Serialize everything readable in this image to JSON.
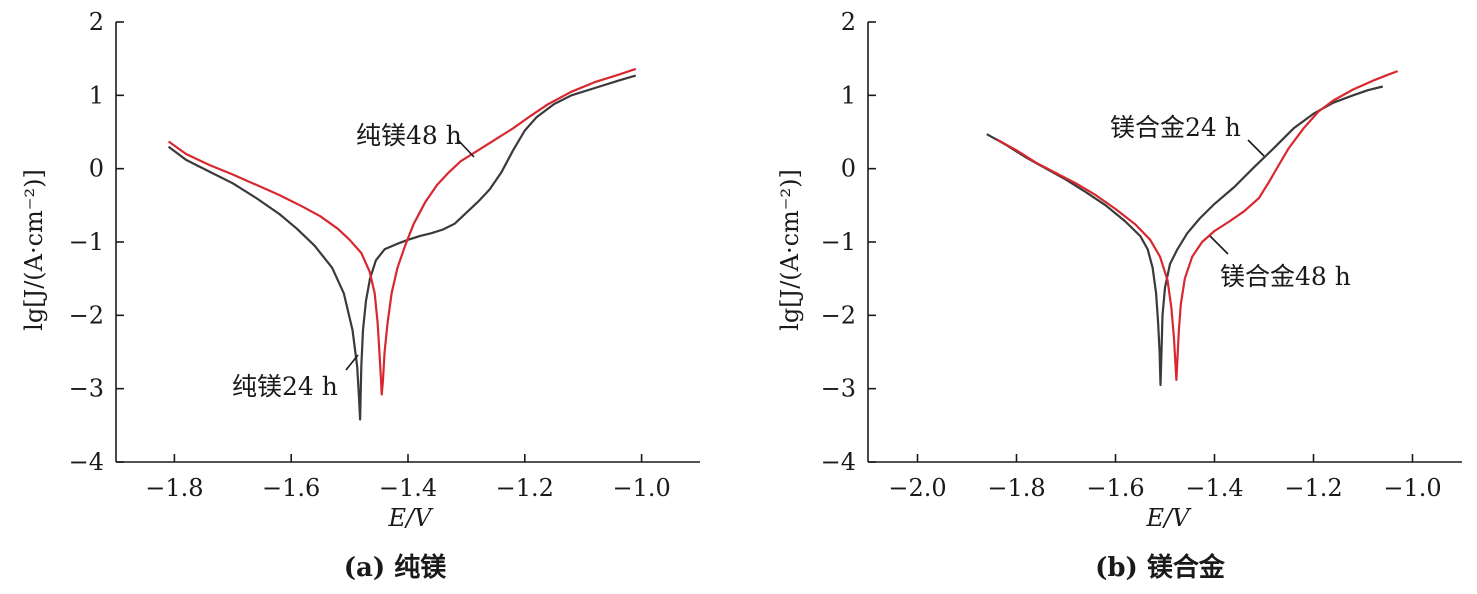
{
  "colors": {
    "series_24h": "#3a3a3a",
    "series_48h": "#d8282f",
    "axis": "#1a1a1a"
  },
  "chart_data": [
    {
      "type": "line",
      "caption": "(a) 纯镁",
      "xlabel": "E/V",
      "ylabel": "lg[J/(A·cm⁻²)]",
      "xlim": [
        -1.9,
        -0.9
      ],
      "ylim": [
        -4,
        2
      ],
      "xticks": [
        -1.8,
        -1.6,
        -1.4,
        -1.2,
        -1.0
      ],
      "xtick_labels": [
        "−1.8",
        "−1.6",
        "−1.4",
        "−1.2",
        "−1.0"
      ],
      "yticks": [
        -4,
        -3,
        -2,
        -1,
        0,
        1,
        2
      ],
      "ytick_labels": [
        "−4",
        "−3",
        "−2",
        "−1",
        "0",
        "1",
        "2"
      ],
      "series": [
        {
          "name": "纯镁24 h",
          "color_key": "series_24h",
          "x": [
            -1.81,
            -1.78,
            -1.74,
            -1.7,
            -1.66,
            -1.62,
            -1.59,
            -1.56,
            -1.53,
            -1.51,
            -1.495,
            -1.487,
            -1.484,
            -1.482,
            -1.48,
            -1.477,
            -1.472,
            -1.465,
            -1.455,
            -1.44,
            -1.42,
            -1.4,
            -1.38,
            -1.36,
            -1.34,
            -1.32,
            -1.3,
            -1.28,
            -1.26,
            -1.24,
            -1.22,
            -1.2,
            -1.18,
            -1.15,
            -1.12,
            -1.08,
            -1.04,
            -1.01
          ],
          "y": [
            0.3,
            0.12,
            -0.04,
            -0.2,
            -0.4,
            -0.62,
            -0.82,
            -1.05,
            -1.35,
            -1.7,
            -2.2,
            -2.7,
            -3.1,
            -3.42,
            -2.7,
            -2.2,
            -1.8,
            -1.5,
            -1.25,
            -1.1,
            -1.03,
            -0.97,
            -0.92,
            -0.88,
            -0.83,
            -0.75,
            -0.6,
            -0.45,
            -0.28,
            -0.05,
            0.25,
            0.52,
            0.7,
            0.88,
            1.0,
            1.1,
            1.2,
            1.27
          ]
        },
        {
          "name": "纯镁48 h",
          "color_key": "series_48h",
          "x": [
            -1.81,
            -1.78,
            -1.74,
            -1.7,
            -1.66,
            -1.62,
            -1.58,
            -1.55,
            -1.52,
            -1.5,
            -1.48,
            -1.466,
            -1.457,
            -1.452,
            -1.449,
            -1.446,
            -1.445,
            -1.443,
            -1.44,
            -1.435,
            -1.428,
            -1.418,
            -1.405,
            -1.39,
            -1.37,
            -1.35,
            -1.33,
            -1.31,
            -1.28,
            -1.25,
            -1.22,
            -1.19,
            -1.16,
            -1.12,
            -1.08,
            -1.04,
            -1.01
          ],
          "y": [
            0.37,
            0.2,
            0.05,
            -0.08,
            -0.22,
            -0.36,
            -0.52,
            -0.65,
            -0.82,
            -0.97,
            -1.15,
            -1.4,
            -1.7,
            -2.1,
            -2.5,
            -2.9,
            -3.08,
            -2.9,
            -2.5,
            -2.1,
            -1.7,
            -1.35,
            -1.05,
            -0.75,
            -0.45,
            -0.22,
            -0.05,
            0.1,
            0.25,
            0.4,
            0.55,
            0.72,
            0.88,
            1.05,
            1.18,
            1.28,
            1.36
          ]
        }
      ],
      "annotations": [
        {
          "text": "纯镁48 h",
          "series_index": 1
        },
        {
          "text": "纯镁24 h",
          "series_index": 0
        }
      ]
    },
    {
      "type": "line",
      "caption": "(b) 镁合金",
      "xlabel": "E/V",
      "ylabel": "lg[J/(A·cm⁻²)]",
      "xlim": [
        -2.1,
        -0.9
      ],
      "ylim": [
        -4,
        2
      ],
      "xticks": [
        -2.0,
        -1.8,
        -1.6,
        -1.4,
        -1.2,
        -1.0
      ],
      "xtick_labels": [
        "−2.0",
        "−1.8",
        "−1.6",
        "−1.4",
        "−1.2",
        "−1.0"
      ],
      "yticks": [
        -4,
        -3,
        -2,
        -1,
        0,
        1,
        2
      ],
      "ytick_labels": [
        "−4",
        "−3",
        "−2",
        "−1",
        "0",
        "1",
        "2"
      ],
      "series": [
        {
          "name": "镁合金24 h",
          "color_key": "series_24h",
          "x": [
            -1.86,
            -1.82,
            -1.78,
            -1.74,
            -1.7,
            -1.66,
            -1.62,
            -1.58,
            -1.55,
            -1.535,
            -1.525,
            -1.518,
            -1.514,
            -1.511,
            -1.509,
            -1.507,
            -1.505,
            -1.5,
            -1.49,
            -1.475,
            -1.455,
            -1.43,
            -1.4,
            -1.36,
            -1.32,
            -1.28,
            -1.24,
            -1.2,
            -1.16,
            -1.12,
            -1.09,
            -1.06
          ],
          "y": [
            0.47,
            0.32,
            0.15,
            0.0,
            -0.15,
            -0.32,
            -0.5,
            -0.72,
            -0.92,
            -1.1,
            -1.35,
            -1.7,
            -2.1,
            -2.5,
            -2.95,
            -2.5,
            -2.0,
            -1.62,
            -1.3,
            -1.1,
            -0.88,
            -0.68,
            -0.48,
            -0.25,
            0.02,
            0.28,
            0.55,
            0.75,
            0.9,
            1.0,
            1.07,
            1.12
          ]
        },
        {
          "name": "镁合金48 h",
          "color_key": "series_48h",
          "x": [
            -1.84,
            -1.8,
            -1.76,
            -1.72,
            -1.68,
            -1.64,
            -1.6,
            -1.56,
            -1.53,
            -1.51,
            -1.495,
            -1.487,
            -1.482,
            -1.479,
            -1.477,
            -1.475,
            -1.472,
            -1.468,
            -1.46,
            -1.445,
            -1.425,
            -1.4,
            -1.37,
            -1.34,
            -1.31,
            -1.29,
            -1.27,
            -1.25,
            -1.22,
            -1.19,
            -1.16,
            -1.12,
            -1.08,
            -1.05,
            -1.03
          ],
          "y": [
            0.4,
            0.25,
            0.08,
            -0.06,
            -0.2,
            -0.36,
            -0.55,
            -0.76,
            -0.97,
            -1.2,
            -1.52,
            -1.9,
            -2.3,
            -2.65,
            -2.88,
            -2.6,
            -2.2,
            -1.85,
            -1.5,
            -1.2,
            -1.0,
            -0.85,
            -0.72,
            -0.58,
            -0.4,
            -0.18,
            0.05,
            0.28,
            0.55,
            0.78,
            0.93,
            1.08,
            1.2,
            1.28,
            1.33
          ]
        }
      ],
      "annotations": [
        {
          "text": "镁合金24 h",
          "series_index": 0
        },
        {
          "text": "镁合金48 h",
          "series_index": 1
        }
      ]
    }
  ]
}
